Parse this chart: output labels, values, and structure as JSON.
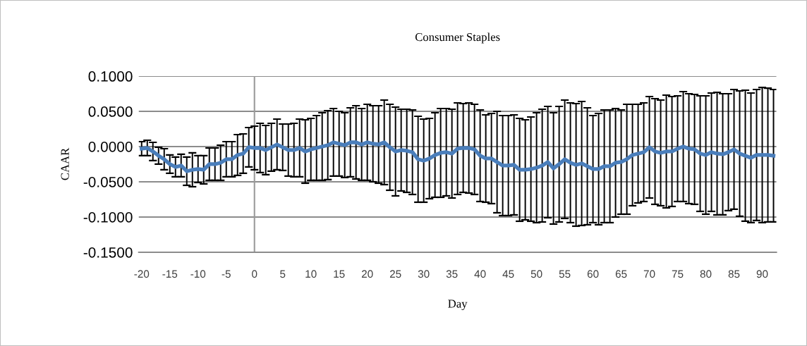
{
  "chart_data": {
    "type": "line",
    "title": "Consumer Staples",
    "xlabel": "Day",
    "ylabel": "CAAR",
    "x": [
      -20,
      -19,
      -18,
      -17,
      -16,
      -15,
      -14,
      -13,
      -12,
      -11,
      -10,
      -9,
      -8,
      -7,
      -6,
      -5,
      -4,
      -3,
      -2,
      -1,
      0,
      1,
      2,
      3,
      4,
      5,
      6,
      7,
      8,
      9,
      10,
      11,
      12,
      13,
      14,
      15,
      16,
      17,
      18,
      19,
      20,
      21,
      22,
      23,
      24,
      25,
      26,
      27,
      28,
      29,
      30,
      31,
      32,
      33,
      34,
      35,
      36,
      37,
      38,
      39,
      40,
      41,
      42,
      43,
      44,
      45,
      46,
      47,
      48,
      49,
      50,
      51,
      52,
      53,
      54,
      55,
      56,
      57,
      58,
      59,
      60,
      61,
      62,
      63,
      64,
      65,
      66,
      67,
      68,
      69,
      70,
      71,
      72,
      73,
      74,
      75,
      76,
      77,
      78,
      79,
      80,
      81,
      82,
      83,
      84,
      85,
      86,
      87,
      88,
      89,
      90,
      91,
      92
    ],
    "series": [
      {
        "color": "#4a7ebb",
        "values": [
          -0.003,
          -0.002,
          -0.007,
          -0.013,
          -0.018,
          -0.025,
          -0.029,
          -0.027,
          -0.035,
          -0.033,
          -0.032,
          -0.033,
          -0.025,
          -0.025,
          -0.023,
          -0.018,
          -0.018,
          -0.012,
          -0.01,
          -0.001,
          -0.002,
          -0.002,
          -0.005,
          -0.001,
          0.003,
          -0.001,
          -0.005,
          -0.005,
          -0.002,
          -0.007,
          -0.004,
          -0.002,
          0.0,
          0.002,
          0.006,
          0.004,
          0.002,
          0.006,
          0.006,
          0.003,
          0.006,
          0.004,
          0.003,
          0.006,
          -0.001,
          -0.007,
          -0.005,
          -0.006,
          -0.008,
          -0.018,
          -0.02,
          -0.017,
          -0.012,
          -0.009,
          -0.008,
          -0.01,
          -0.003,
          -0.002,
          -0.002,
          -0.004,
          -0.013,
          -0.017,
          -0.017,
          -0.022,
          -0.027,
          -0.027,
          -0.026,
          -0.033,
          -0.033,
          -0.032,
          -0.03,
          -0.027,
          -0.022,
          -0.031,
          -0.025,
          -0.018,
          -0.023,
          -0.026,
          -0.024,
          -0.028,
          -0.032,
          -0.032,
          -0.028,
          -0.028,
          -0.023,
          -0.022,
          -0.018,
          -0.012,
          -0.01,
          -0.008,
          -0.001,
          -0.007,
          -0.009,
          -0.007,
          -0.007,
          -0.003,
          0.0,
          -0.003,
          -0.004,
          -0.01,
          -0.012,
          -0.008,
          -0.01,
          -0.011,
          -0.008,
          -0.004,
          -0.01,
          -0.013,
          -0.016,
          -0.012,
          -0.012,
          -0.012,
          -0.013
        ],
        "errors": [
          0.01,
          0.011,
          0.013,
          0.012,
          0.015,
          0.013,
          0.014,
          0.016,
          0.02,
          0.024,
          0.019,
          0.02,
          0.023,
          0.023,
          0.025,
          0.025,
          0.025,
          0.029,
          0.028,
          0.028,
          0.031,
          0.035,
          0.035,
          0.034,
          0.036,
          0.033,
          0.037,
          0.038,
          0.041,
          0.045,
          0.044,
          0.046,
          0.048,
          0.049,
          0.048,
          0.046,
          0.046,
          0.049,
          0.052,
          0.051,
          0.054,
          0.054,
          0.055,
          0.06,
          0.061,
          0.063,
          0.058,
          0.059,
          0.06,
          0.061,
          0.059,
          0.057,
          0.06,
          0.063,
          0.062,
          0.063,
          0.065,
          0.063,
          0.064,
          0.064,
          0.065,
          0.062,
          0.064,
          0.072,
          0.071,
          0.071,
          0.071,
          0.073,
          0.071,
          0.074,
          0.078,
          0.08,
          0.079,
          0.079,
          0.082,
          0.084,
          0.085,
          0.087,
          0.088,
          0.083,
          0.076,
          0.079,
          0.08,
          0.08,
          0.077,
          0.074,
          0.078,
          0.072,
          0.07,
          0.07,
          0.072,
          0.075,
          0.075,
          0.08,
          0.078,
          0.075,
          0.078,
          0.078,
          0.078,
          0.082,
          0.084,
          0.084,
          0.087,
          0.086,
          0.083,
          0.085,
          0.089,
          0.093,
          0.092,
          0.093,
          0.096,
          0.095,
          0.094
        ]
      }
    ],
    "xlim": [
      -20.5,
      92.5
    ],
    "xticks": [
      -20,
      -15,
      -10,
      -5,
      0,
      5,
      10,
      15,
      20,
      25,
      30,
      35,
      40,
      45,
      50,
      55,
      60,
      65,
      70,
      75,
      80,
      85,
      90
    ],
    "ylim": [
      -0.15,
      0.1
    ],
    "yticks": [
      {
        "value": -0.15,
        "label": "-0.1500"
      },
      {
        "value": -0.1,
        "label": "-0.1000"
      },
      {
        "value": -0.05,
        "label": "-0.0500"
      },
      {
        "value": 0,
        "label": "0.0000"
      },
      {
        "value": 0.05,
        "label": "0.0500"
      },
      {
        "value": 0.1,
        "label": "0.1000"
      }
    ],
    "grid": "y",
    "legend": false,
    "marker": "none",
    "line_style": "solid",
    "ref_lines": [
      {
        "axis": "x",
        "value": 0,
        "color": "#9a9a9a",
        "line_style": "solid"
      }
    ]
  }
}
